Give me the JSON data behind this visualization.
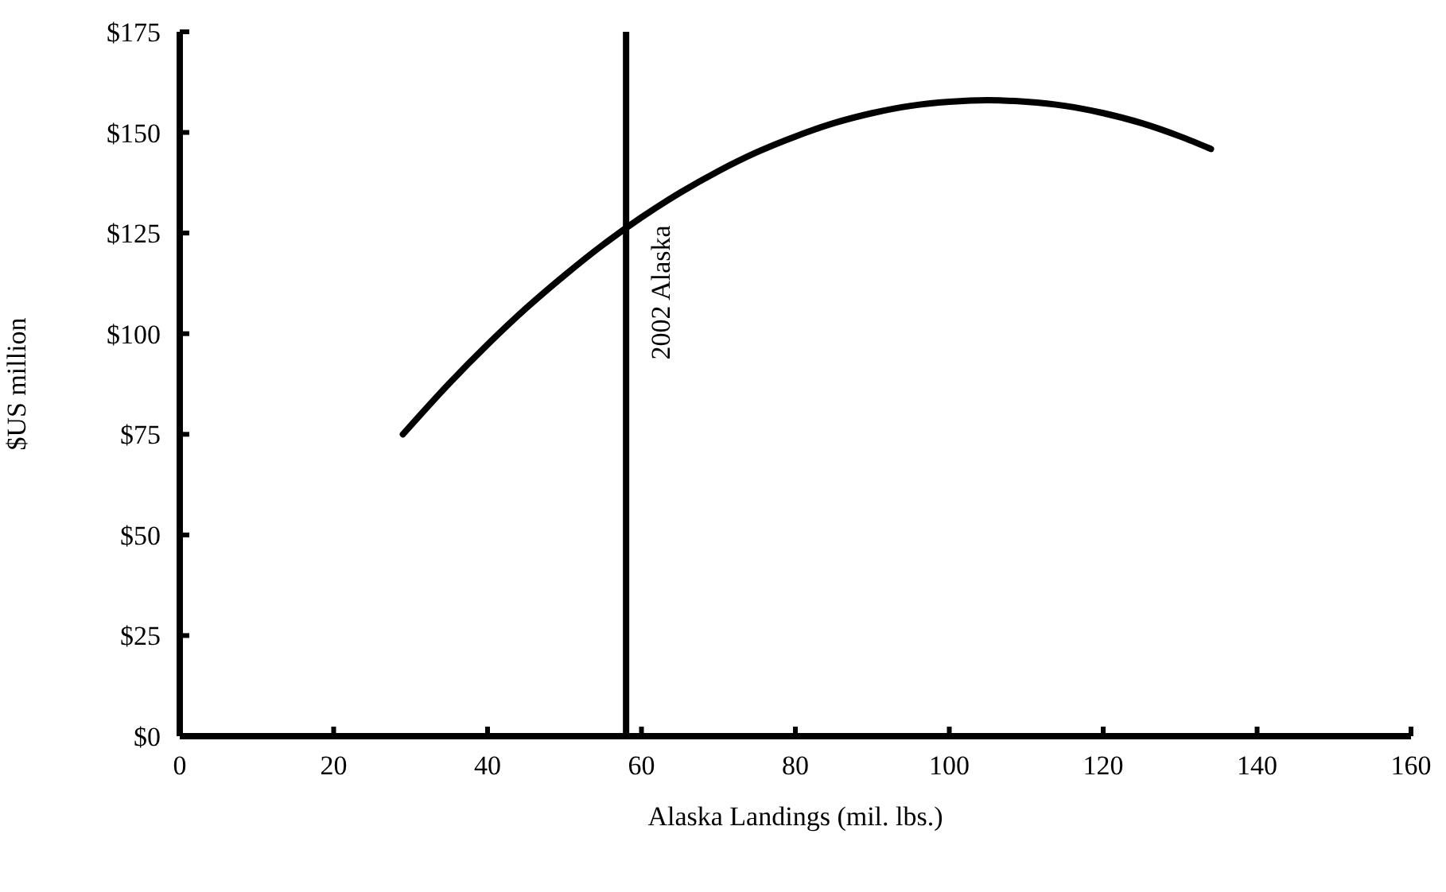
{
  "chart_data": {
    "type": "line",
    "xlabel": "Alaska Landings (mil. lbs.)",
    "ylabel": "$US million",
    "x": [
      29,
      35,
      40,
      45,
      50,
      55,
      60,
      65,
      70,
      75,
      80,
      85,
      90,
      95,
      100,
      105,
      110,
      115,
      120,
      125,
      130,
      134
    ],
    "series": [
      {
        "color": "#000000",
        "values": [
          75,
          87.6,
          97.3,
          106.3,
          114.5,
          122.1,
          128.9,
          135,
          140.4,
          145.1,
          149,
          152.3,
          154.8,
          156.6,
          157.6,
          158,
          157.6,
          156.6,
          154.8,
          152.3,
          149,
          145.9
        ]
      }
    ],
    "xlim": [
      0,
      160
    ],
    "xticks": [
      0,
      20,
      40,
      60,
      80,
      100,
      120,
      140,
      160
    ],
    "ylim": [
      0,
      175
    ],
    "yticks": [
      {
        "value": 0,
        "label": "$0"
      },
      {
        "value": 25,
        "label": "$25"
      },
      {
        "value": 50,
        "label": "$50"
      },
      {
        "value": 75,
        "label": "$75"
      },
      {
        "value": 100,
        "label": "$100"
      },
      {
        "value": 125,
        "label": "$125"
      },
      {
        "value": 150,
        "label": "$150"
      },
      {
        "value": 175,
        "label": "$175"
      }
    ],
    "ref_lines": [
      {
        "axis": "x",
        "value": 58,
        "label": "2002 Alaska",
        "color": "#000000"
      }
    ],
    "grid": false,
    "legend": false,
    "marker": "none",
    "line_style": "solid"
  }
}
